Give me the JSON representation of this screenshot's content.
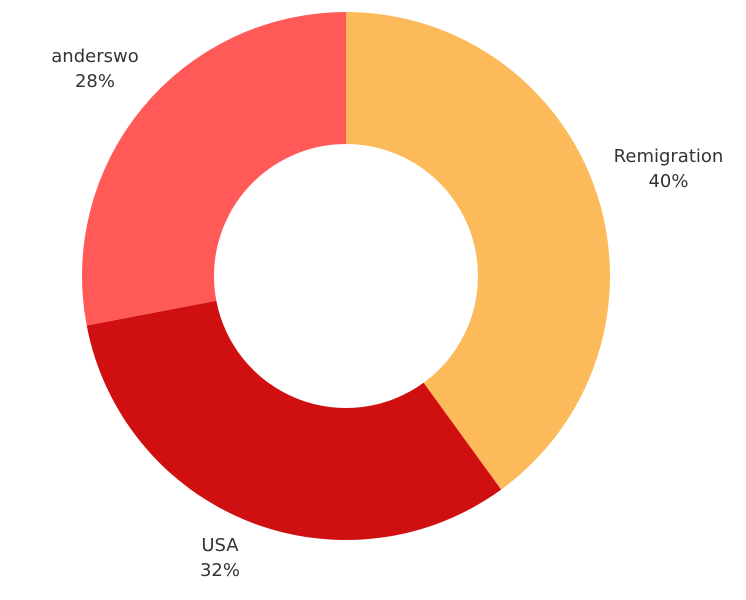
{
  "chart_data": {
    "type": "pie",
    "title": "",
    "donut": true,
    "start_angle_deg": 0,
    "direction": "clockwise",
    "legend": "none",
    "slices": [
      {
        "label": "Remigration",
        "value": 40,
        "value_label": "40%",
        "color": "#FDBA5A"
      },
      {
        "label": "USA",
        "value": 32,
        "value_label": "32%",
        "color": "#D01010"
      },
      {
        "label": "anderswo",
        "value": 28,
        "value_label": "28%",
        "color": "#FF5A57"
      }
    ]
  }
}
